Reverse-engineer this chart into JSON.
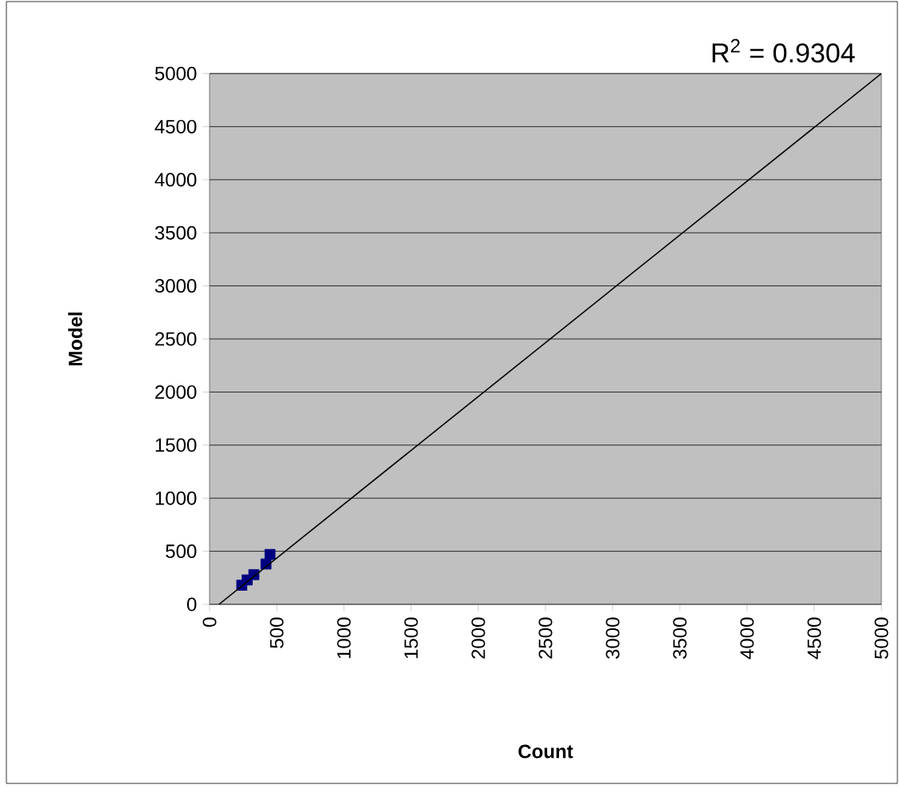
{
  "chart_data": {
    "type": "scatter",
    "xlabel": "Count",
    "ylabel": "Model",
    "xlim": [
      0,
      5000
    ],
    "ylim": [
      0,
      5000
    ],
    "xticks": [
      0,
      500,
      1000,
      1500,
      2000,
      2500,
      3000,
      3500,
      4000,
      4500,
      5000
    ],
    "yticks": [
      0,
      500,
      1000,
      1500,
      2000,
      2500,
      3000,
      3500,
      4000,
      4500,
      5000
    ],
    "grid": "y",
    "series": [
      {
        "color": "#000080",
        "marker": "square",
        "x": [
          240,
          280,
          330,
          420,
          450
        ],
        "values": [
          180,
          230,
          280,
          380,
          470
        ]
      },
      {
        "type": "line",
        "color": "#000000",
        "marker": "none",
        "line_style": "solid",
        "x": [
          70,
          5000
        ],
        "values": [
          0,
          5000
        ]
      }
    ],
    "annotations": [
      "R$^{2}$ = 0.9304"
    ]
  }
}
